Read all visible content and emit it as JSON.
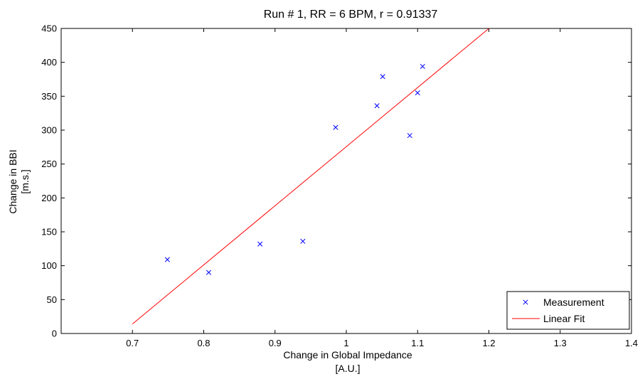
{
  "chart_data": {
    "type": "scatter",
    "title": "Run # 1, RR = 6 BPM, r = 0.91337",
    "xlabel": [
      "Change in Global Impedance",
      "[A.U.]"
    ],
    "ylabel": [
      "Change in BBI",
      "[m.s.]"
    ],
    "xlim": [
      0.6,
      1.4
    ],
    "ylim": [
      0,
      450
    ],
    "x_ticks": [
      0.7,
      0.8,
      0.9,
      1.0,
      1.1,
      1.2,
      1.3,
      1.4
    ],
    "x_tick_labels": [
      "0.7",
      "0.8",
      "0.9",
      "1",
      "1.1",
      "1.2",
      "1.3",
      "1.4"
    ],
    "y_ticks": [
      0,
      50,
      100,
      150,
      200,
      250,
      300,
      350,
      400,
      450
    ],
    "y_tick_labels": [
      "0",
      "50",
      "100",
      "150",
      "200",
      "250",
      "300",
      "350",
      "400",
      "450"
    ],
    "grid": false,
    "legend_position": "bottom-right",
    "series": [
      {
        "name": "Measurement",
        "kind": "scatter",
        "marker": "x",
        "color": "#0000ff",
        "x": [
          0.749,
          0.807,
          0.879,
          0.939,
          0.985,
          1.043,
          1.051,
          1.089,
          1.1,
          1.107
        ],
        "y": [
          109,
          90,
          132,
          136,
          304,
          336,
          379,
          292,
          355,
          394
        ]
      },
      {
        "name": "Linear Fit",
        "kind": "line",
        "color": "#ff0000",
        "x": [
          0.7,
          1.2
        ],
        "y": [
          14,
          450
        ]
      }
    ]
  }
}
